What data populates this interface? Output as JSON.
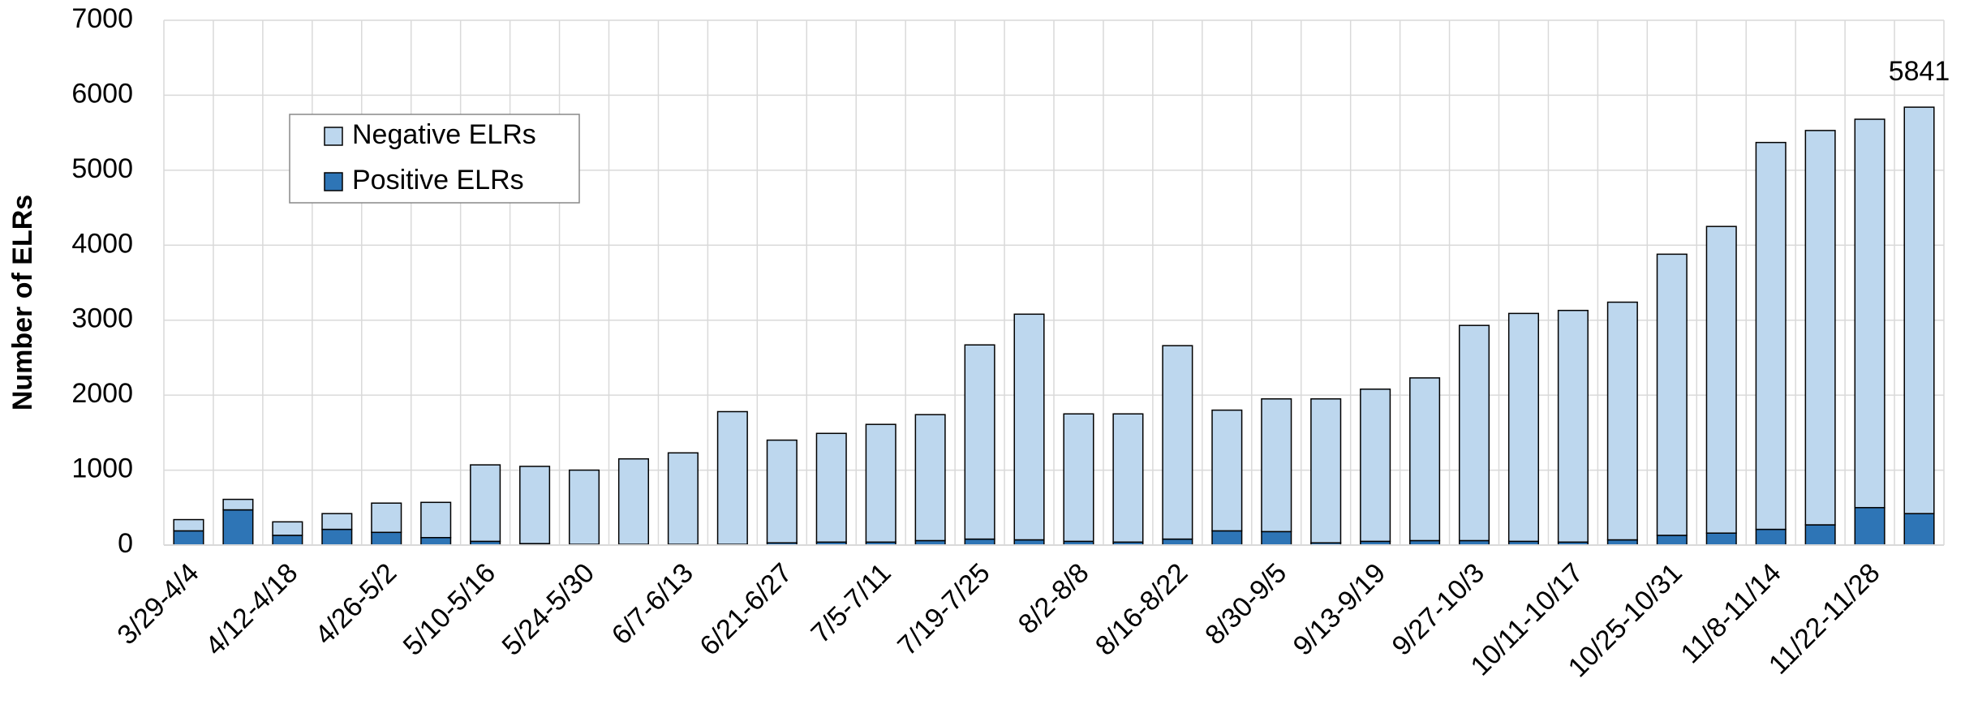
{
  "chart_data": {
    "type": "stacked_bar",
    "ylabel": "Number of ELRs",
    "categories": [
      "3/29-4/4",
      null,
      "4/12-4/18",
      null,
      "4/26-5/2",
      null,
      "5/10-5/16",
      null,
      "5/24-5/30",
      null,
      "6/7-6/13",
      null,
      "6/21-6/27",
      null,
      "7/5-7/11",
      null,
      "7/19-7/25",
      null,
      "8/2-8/8",
      null,
      "8/16-8/22",
      null,
      "8/30-9/5",
      null,
      "9/13-9/19",
      null,
      "9/27-10/3",
      null,
      "10/11-10/17",
      null,
      "10/25-10/31",
      null,
      "11/8-11/14",
      null,
      "11/22-11/28",
      null
    ],
    "series": [
      {
        "name": "Negative ELRs",
        "color": "#bdd7ee",
        "values": [
          150,
          140,
          180,
          210,
          390,
          470,
          1020,
          1030,
          990,
          1140,
          1220,
          1770,
          1370,
          1450,
          1570,
          1680,
          2590,
          3010,
          1700,
          1710,
          2580,
          1610,
          1770,
          1920,
          2030,
          2170,
          2870,
          3040,
          3090,
          3170,
          3750,
          4090,
          5160,
          5260,
          5180,
          5421
        ]
      },
      {
        "name": "Positive ELRs",
        "color": "#2e75b6",
        "values": [
          190,
          470,
          130,
          210,
          170,
          100,
          50,
          20,
          10,
          10,
          10,
          10,
          30,
          40,
          40,
          60,
          80,
          70,
          50,
          40,
          80,
          190,
          180,
          30,
          50,
          60,
          60,
          50,
          40,
          70,
          130,
          160,
          210,
          270,
          500,
          420
        ]
      }
    ],
    "annotation": "5841",
    "ylim": [
      0,
      7000
    ],
    "yticks": [
      0,
      1000,
      2000,
      3000,
      4000,
      5000,
      6000,
      7000
    ],
    "grid": true,
    "legend": "upper left"
  }
}
